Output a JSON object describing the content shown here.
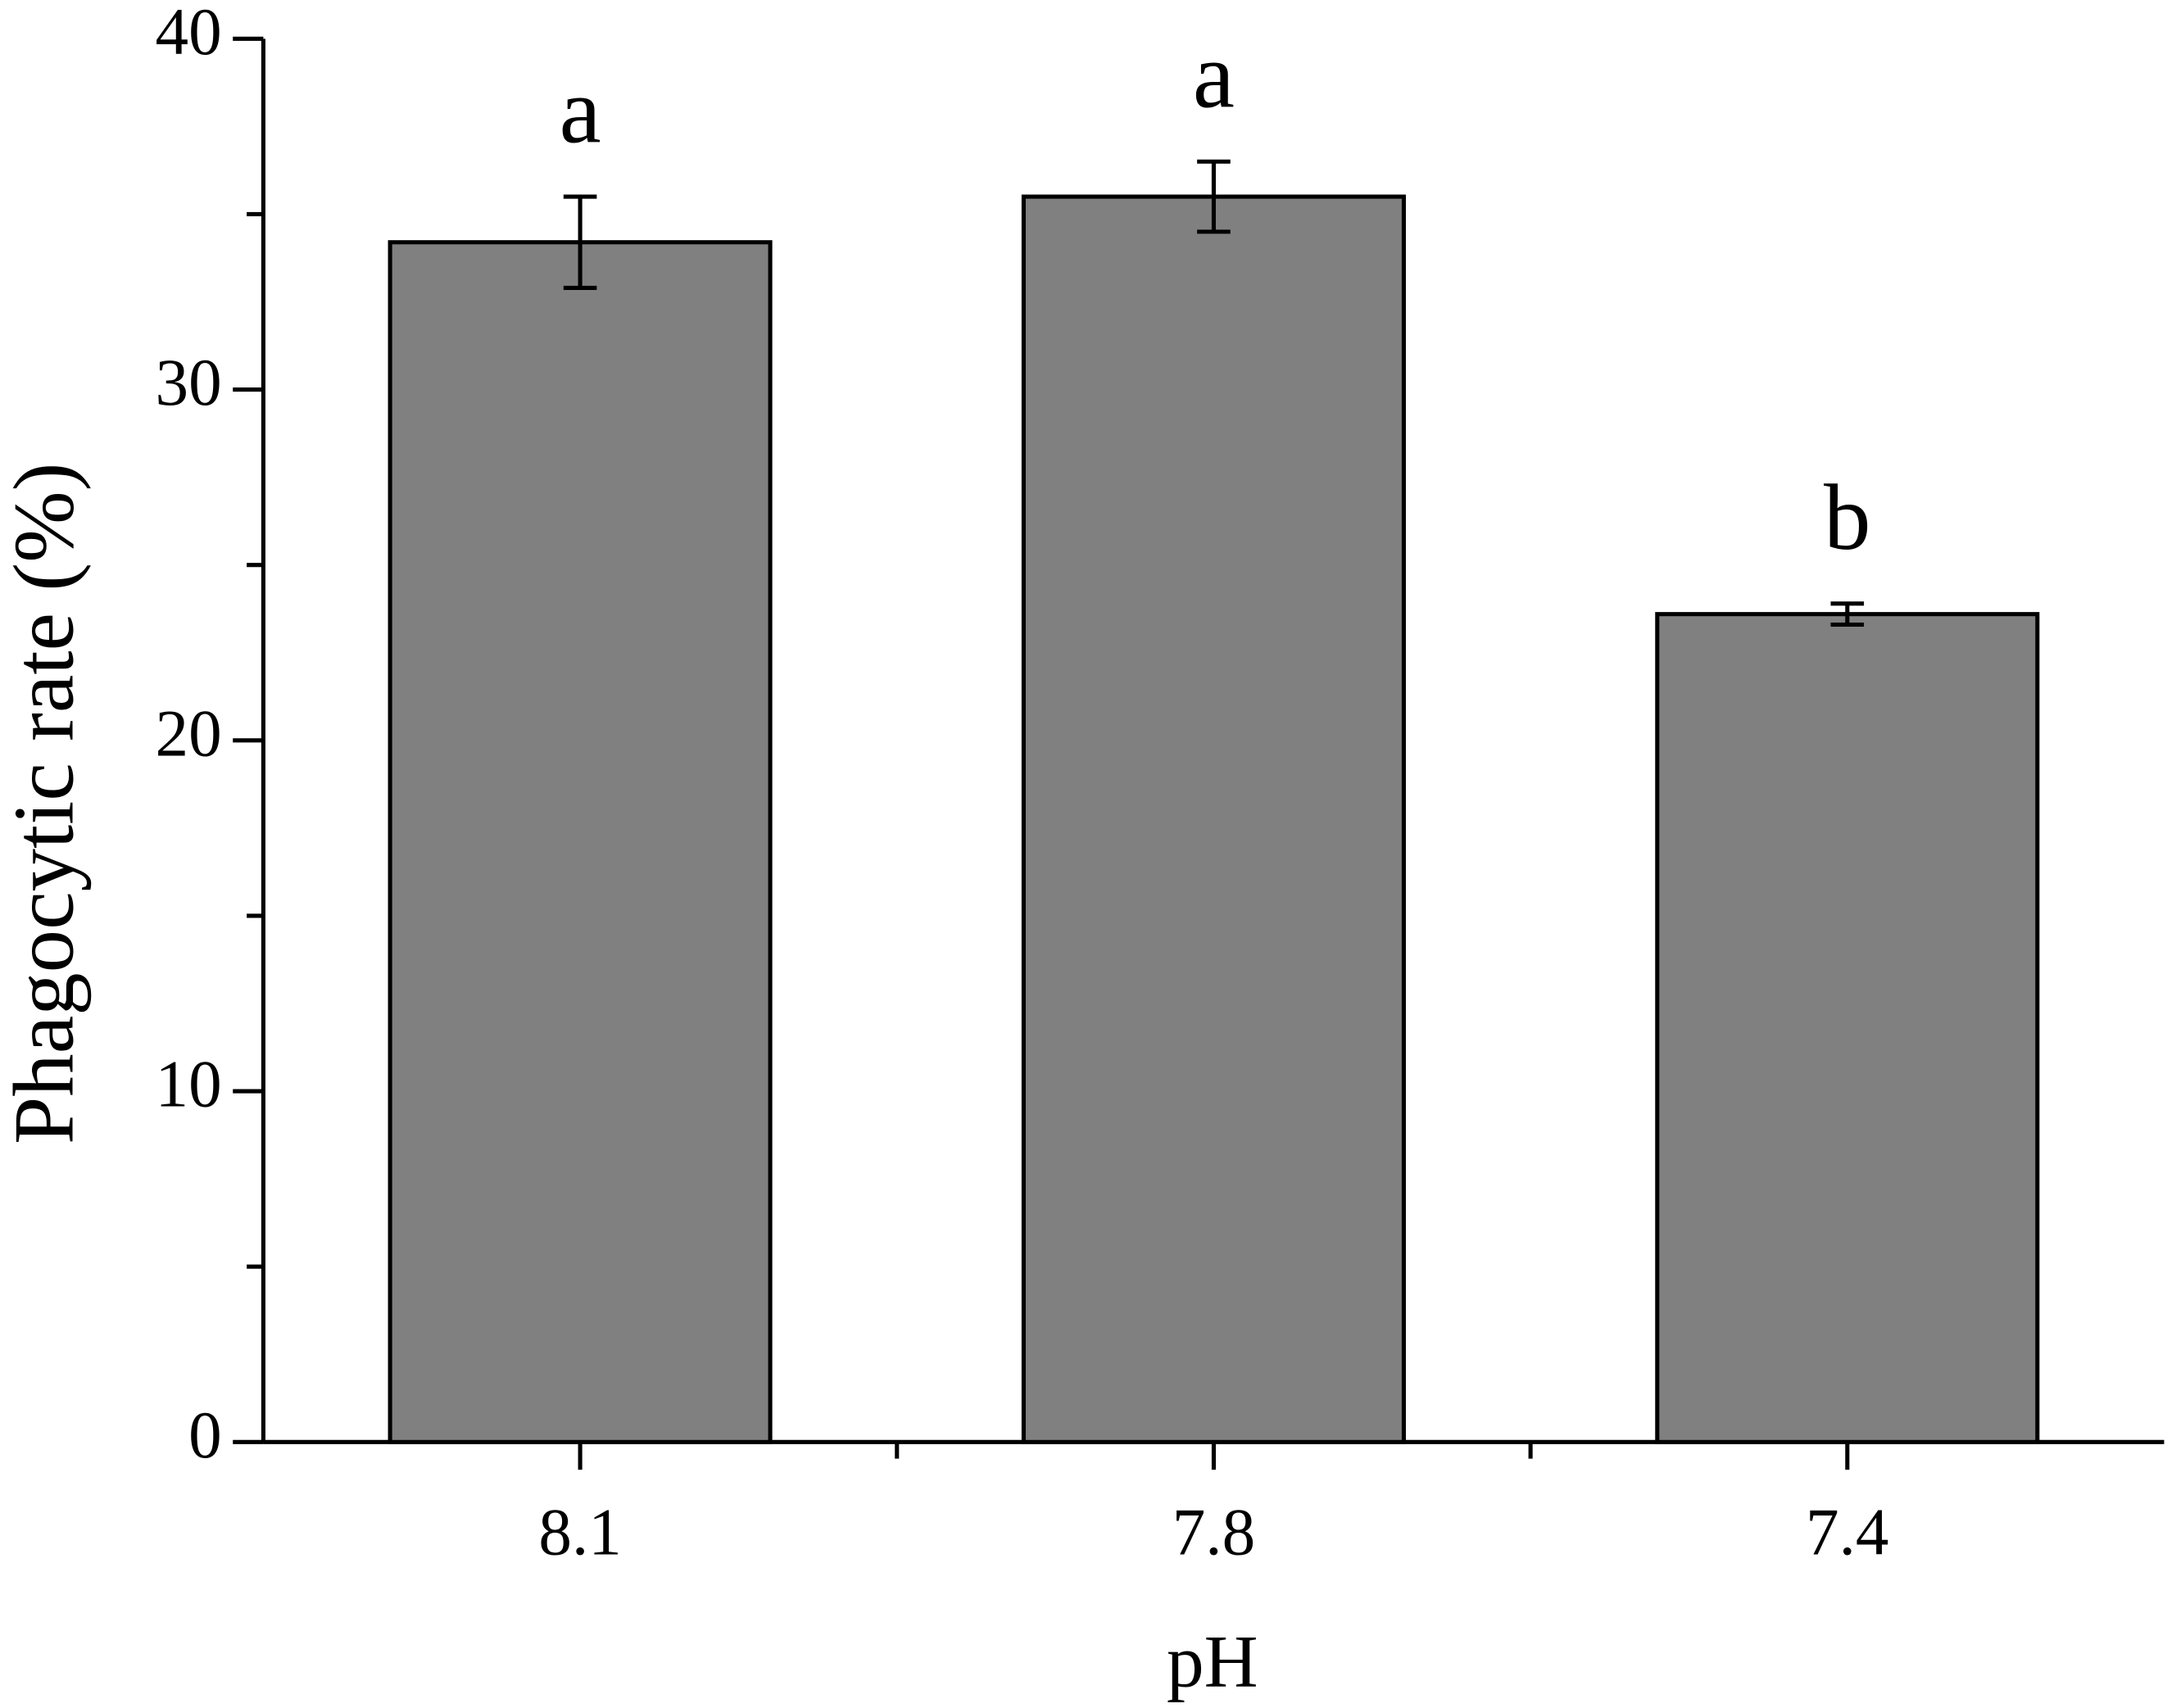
{
  "chart_data": {
    "type": "bar",
    "x_label": "pH",
    "y_label": "Phagocytic rate (%)",
    "categories": [
      "8.1",
      "7.8",
      "7.4"
    ],
    "values": [
      34.2,
      35.5,
      23.6
    ],
    "errors": [
      1.3,
      1.0,
      0.3
    ],
    "annotations": [
      "a",
      "a",
      "b"
    ],
    "color": "#808080",
    "ylim": [
      0,
      40
    ],
    "yticks": [
      0,
      10,
      20,
      30,
      40
    ],
    "yminor_ticks": [
      5,
      15,
      25,
      35
    ],
    "grid": false
  }
}
